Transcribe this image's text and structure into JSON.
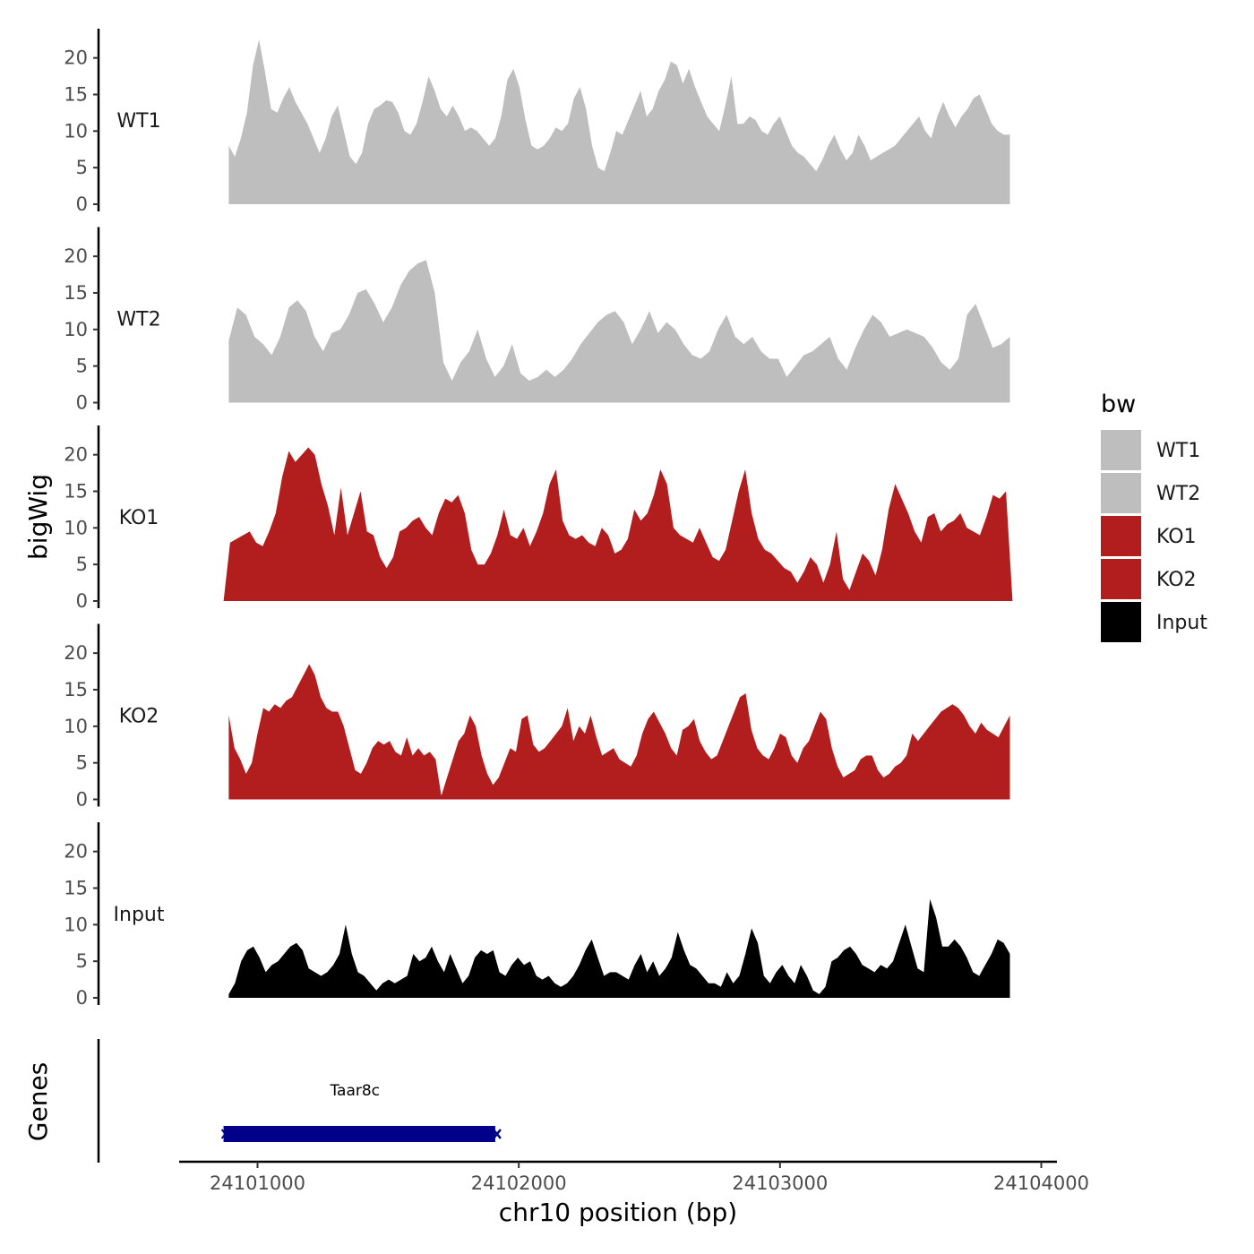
{
  "chart_data": {
    "type": "area",
    "xlabel": "chr10 position (bp)",
    "ylabel": "bigWig",
    "genes_label": "Genes",
    "xlim": [
      24100700,
      24104060
    ],
    "ylim": [
      0,
      24
    ],
    "x_ticks": [
      24101000,
      24102000,
      24103000,
      24104000
    ],
    "x_tick_labels": [
      "24101000",
      "24102000",
      "24103000",
      "24104000"
    ],
    "y_ticks": [
      0,
      5,
      10,
      15,
      20
    ],
    "y_tick_labels": [
      "0",
      "5",
      "10",
      "15",
      "20"
    ],
    "grid": false,
    "legend": {
      "title": "bw",
      "position": "right",
      "entries": [
        {
          "label": "WT1",
          "color": "#bebebe"
        },
        {
          "label": "WT2",
          "color": "#bebebe"
        },
        {
          "label": "KO1",
          "color": "#b21e1e"
        },
        {
          "label": "KO2",
          "color": "#b21e1e"
        },
        {
          "label": "Input",
          "color": "#000000"
        }
      ]
    },
    "tracks": [
      {
        "name": "WT1",
        "color": "#bebebe",
        "x_start": 24100890,
        "x_end": 24103880,
        "values": [
          8,
          6.5,
          9,
          12.5,
          19,
          22.5,
          18,
          13,
          12.5,
          14.5,
          16,
          14,
          12.5,
          11,
          9,
          7,
          9,
          12,
          13.5,
          10,
          6.5,
          5.5,
          7,
          11,
          13,
          13.5,
          14.2,
          14,
          12.5,
          10,
          9.5,
          11,
          14,
          17.5,
          15.5,
          13,
          12,
          13.5,
          12,
          10,
          10.5,
          10,
          9,
          8,
          9,
          12,
          17,
          18.5,
          16,
          11.5,
          8,
          7.5,
          8,
          9,
          10.5,
          10,
          11,
          14.5,
          16,
          13,
          8,
          5,
          4.5,
          7,
          10,
          9.5,
          11.5,
          13.5,
          15.5,
          12,
          13,
          15.5,
          17,
          19.5,
          19,
          16.5,
          18.5,
          16,
          14,
          12,
          11,
          10,
          13.5,
          17.5,
          11,
          11,
          12,
          11.5,
          10,
          9.5,
          11,
          12,
          10,
          8,
          7,
          6.5,
          5.5,
          4.5,
          6,
          8,
          9.5,
          7.5,
          6,
          7,
          9.5,
          8,
          6,
          6.5,
          7,
          7.5,
          8,
          9,
          10,
          11,
          12,
          10,
          9,
          12,
          14,
          12,
          10.5,
          12,
          13,
          14.5,
          15,
          13,
          11,
          10,
          9.5,
          9.5
        ]
      },
      {
        "name": "WT2",
        "color": "#bebebe",
        "x_start": 24100890,
        "x_end": 24103880,
        "values": [
          8.5,
          13,
          12,
          9,
          8,
          6.5,
          9,
          13,
          14,
          12.5,
          9,
          7,
          9.5,
          10,
          12,
          15,
          15.5,
          13.5,
          11,
          13,
          16,
          18,
          19,
          19.5,
          15,
          5.5,
          3,
          5.5,
          7,
          10,
          6,
          3.5,
          5,
          8,
          4,
          3,
          3.5,
          4.5,
          3.5,
          4.5,
          6,
          8,
          9.5,
          11,
          12,
          12.5,
          11,
          8,
          10,
          12.5,
          9.5,
          11,
          10,
          8,
          6.5,
          6,
          7,
          10,
          12,
          9,
          8,
          9,
          7,
          6,
          6,
          3.5,
          5,
          6.5,
          7,
          8,
          9,
          6,
          4.5,
          7.5,
          10,
          12,
          11,
          9,
          9.5,
          10,
          9.5,
          9,
          7.5,
          5.5,
          4.5,
          6,
          12,
          13.5,
          10.5,
          7.5,
          8,
          9
        ]
      },
      {
        "name": "KO1",
        "color": "#b21e1e",
        "x_start": 24100870,
        "x_end": 24103890,
        "values": [
          0,
          8,
          8.5,
          9,
          9.5,
          8,
          7.5,
          9.5,
          12,
          17,
          20.5,
          19,
          20,
          21,
          20,
          16,
          13,
          9,
          15.5,
          9,
          12,
          15,
          9.5,
          9,
          6,
          4.5,
          6,
          9.5,
          10,
          11,
          11.5,
          10,
          9,
          12,
          14,
          13.5,
          14.5,
          12,
          7,
          5,
          5,
          6.5,
          9,
          12.5,
          9,
          8.5,
          10,
          7.5,
          9.5,
          12,
          16,
          18,
          11,
          9,
          8.5,
          9,
          8,
          7.5,
          10,
          9,
          6.5,
          7,
          8.5,
          12.5,
          11,
          12,
          14.5,
          18,
          16,
          10,
          9,
          8.5,
          8,
          10,
          8,
          6,
          5.5,
          7,
          11,
          15,
          18,
          12,
          8.5,
          7,
          6.5,
          5.5,
          4.5,
          4,
          2.5,
          4,
          6,
          5,
          2.5,
          5,
          9.5,
          3,
          1.5,
          4,
          6.5,
          5.5,
          3.5,
          7,
          12.5,
          16,
          14,
          12,
          9.5,
          8,
          11.5,
          12,
          9.5,
          10.5,
          11,
          12,
          10,
          9.5,
          9,
          11.5,
          14.5,
          14,
          15,
          0
        ]
      },
      {
        "name": "KO2",
        "color": "#b21e1e",
        "x_start": 24100890,
        "x_end": 24103880,
        "values": [
          11.5,
          7,
          5.5,
          3.5,
          5,
          9,
          12.5,
          12,
          13,
          12.5,
          13.5,
          14,
          15.5,
          17,
          18.5,
          17,
          14,
          12.5,
          12,
          12,
          10,
          7,
          4,
          3.5,
          5,
          7,
          8,
          7.5,
          8,
          6.5,
          6,
          8.5,
          6,
          7,
          6,
          6.5,
          5.5,
          0.5,
          3,
          5.5,
          8,
          9,
          11.5,
          10,
          6,
          3.5,
          2,
          3,
          5,
          7,
          6.5,
          11,
          11.5,
          7.5,
          6.5,
          7,
          8,
          9,
          10,
          12.5,
          8,
          10,
          9,
          11.5,
          8.5,
          6,
          6.5,
          7,
          5.5,
          5,
          4.5,
          6,
          9,
          11,
          12,
          10.5,
          9,
          7,
          6,
          9.5,
          10,
          11,
          8,
          6.5,
          5.5,
          6,
          8,
          10,
          12,
          14,
          14.5,
          9.5,
          7,
          6,
          5.5,
          7,
          9,
          8.5,
          6,
          5,
          7,
          8,
          10,
          12,
          11,
          7,
          4.5,
          3,
          3.5,
          4,
          5.5,
          6,
          6,
          4,
          3,
          3.5,
          4.5,
          5,
          6,
          9,
          8,
          9,
          10,
          11,
          12,
          12.5,
          13,
          12.5,
          11.5,
          10,
          9,
          10.5,
          9.5,
          9,
          8.5,
          10,
          11.5
        ]
      },
      {
        "name": "Input",
        "color": "#000000",
        "x_start": 24100890,
        "x_end": 24103880,
        "values": [
          0.5,
          2,
          5,
          6.5,
          7,
          5.5,
          3.5,
          4.5,
          5,
          6,
          7,
          7.5,
          6.5,
          4,
          3.5,
          3,
          3.5,
          4.5,
          6,
          10,
          6,
          3.5,
          3,
          2,
          1,
          2,
          2.5,
          2,
          2.5,
          3,
          6,
          5,
          5.5,
          7,
          5,
          3.5,
          6,
          4,
          2,
          3,
          5.5,
          6.5,
          6,
          6.5,
          3.5,
          3,
          4.5,
          5.5,
          4.5,
          5,
          3,
          2.5,
          3,
          2,
          1.5,
          2,
          3,
          4.5,
          6.5,
          8,
          5.5,
          3,
          3.5,
          3.5,
          3,
          2.5,
          4.5,
          6,
          3.5,
          5,
          3,
          4,
          5.5,
          9,
          6.5,
          4.5,
          4,
          3,
          2,
          2,
          1.5,
          3.5,
          2,
          3,
          6,
          9.5,
          7.5,
          3,
          2,
          3.5,
          4.5,
          3,
          2,
          4.5,
          3,
          1,
          0.5,
          1.5,
          5,
          5.5,
          6.5,
          7,
          6,
          4.5,
          4,
          3.5,
          4.5,
          4,
          5,
          7.5,
          10,
          7,
          4,
          3.5,
          13.5,
          11,
          7,
          7,
          8,
          7,
          5.5,
          3.5,
          3,
          4.5,
          6,
          8,
          7.5,
          6
        ]
      }
    ],
    "genes": [
      {
        "name": "Taar8c",
        "start": 24100870,
        "end": 24101910,
        "strand": "-",
        "color": "#00008b"
      }
    ]
  }
}
